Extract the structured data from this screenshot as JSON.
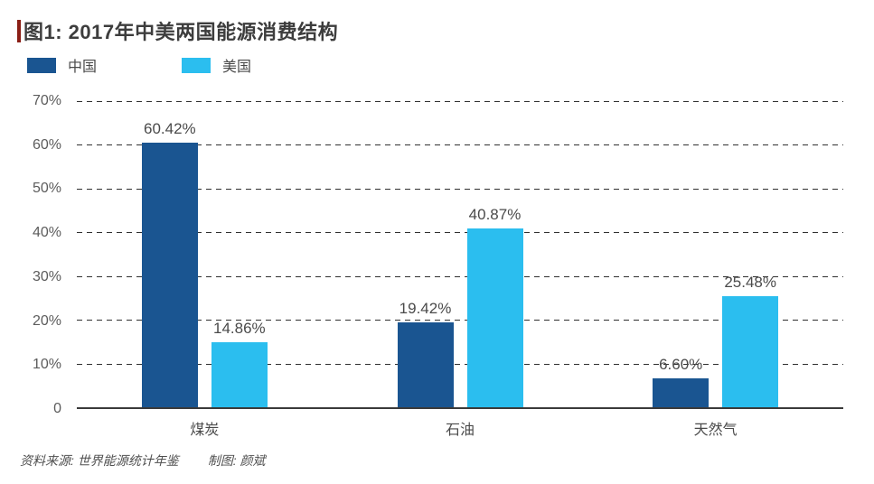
{
  "title": "图1: 2017年中美两国能源消费结构",
  "title_accent_color": "#8a1e15",
  "legend": [
    {
      "label": "中国",
      "color": "#1a5591"
    },
    {
      "label": "美国",
      "color": "#2bbeef"
    }
  ],
  "footer": {
    "source": "资料来源: 世界能源统计年鉴",
    "credit": "制图: 颜斌"
  },
  "chart_data": {
    "type": "bar",
    "title": "图1: 2017年中美两国能源消费结构",
    "categories": [
      "煤炭",
      "石油",
      "天然气"
    ],
    "series": [
      {
        "name": "中国",
        "color": "#1a5591",
        "values": [
          60.42,
          19.42,
          6.6
        ],
        "data_labels": [
          "60.42%",
          "19.42%",
          "6.60%"
        ]
      },
      {
        "name": "美国",
        "color": "#2bbeef",
        "values": [
          14.86,
          40.87,
          25.48
        ],
        "data_labels": [
          "14.86%",
          "40.87%",
          "25.48%"
        ]
      }
    ],
    "xlabel": "",
    "ylabel": "",
    "ylim": [
      0,
      70
    ],
    "yticks": [
      {
        "value": 70,
        "label": "70%"
      },
      {
        "value": 60,
        "label": "60%"
      },
      {
        "value": 50,
        "label": "50%"
      },
      {
        "value": 40,
        "label": "40%"
      },
      {
        "value": 30,
        "label": "30%"
      },
      {
        "value": 20,
        "label": "20%"
      },
      {
        "value": 10,
        "label": "10%"
      },
      {
        "value": 0,
        "label": "0"
      }
    ],
    "grid": "dashed-horizontal",
    "baseline": "solid",
    "legend_position": "top-left"
  }
}
